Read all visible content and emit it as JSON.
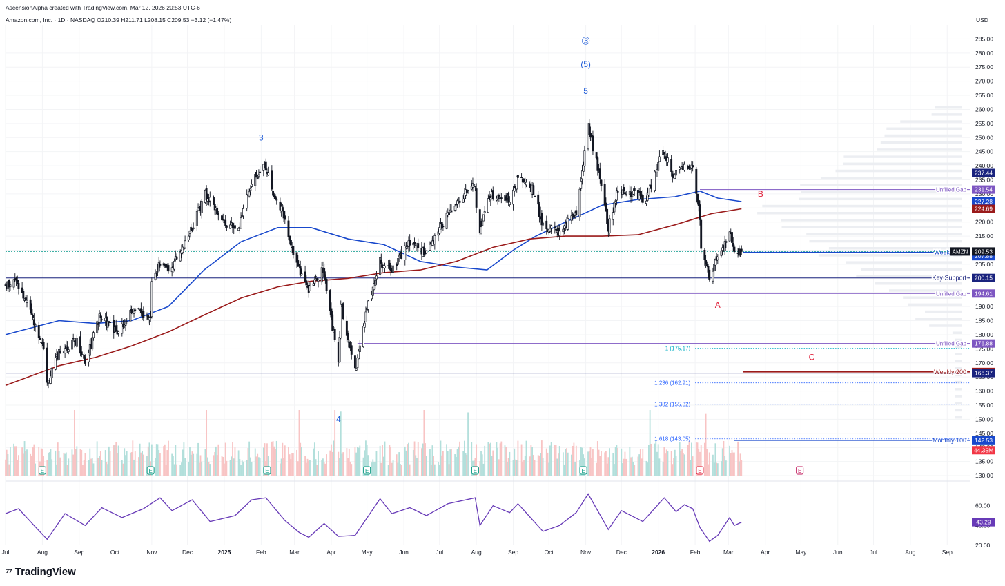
{
  "header": {
    "author_line": "AscensionAlpha created with TradingView.com, Mar 12, 2026 20:53 UTC-6",
    "symbol_line": "Amazon.com, Inc. · 1D · NASDAQ  O210.39  H211.71  L208.15  C209.53  −3.12 (−1.47%)"
  },
  "footer": {
    "brand": "TradingView"
  },
  "colors": {
    "candle": "#131722",
    "ma_blue": "#1848cc",
    "ma_red": "#9a1a1a",
    "level_navy": "#1a237e",
    "gap_purple": "#7e57c2",
    "fib_blue": "#2962ff",
    "wave_blue": "#1e5bd8",
    "wave_red": "#e0203a",
    "rsi": "#673ab7",
    "vol_up": "#b2dfdb",
    "vol_down": "#f8c4c4",
    "earnings": "#089981",
    "earnings_next": "#c2185b"
  },
  "chart_data": [
    {
      "type": "candlestick",
      "symbol": "AMZN",
      "ylabel": "USD",
      "ylim": [
        130,
        290
      ],
      "y_ticks": [
        130,
        135,
        140,
        145,
        150,
        155,
        160,
        165,
        170,
        175,
        180,
        185,
        190,
        195,
        200,
        205,
        210,
        215,
        220,
        225,
        230,
        235,
        240,
        245,
        250,
        255,
        260,
        265,
        270,
        275,
        280,
        285
      ],
      "x_range": [
        "2024-07-01",
        "2026-09-20"
      ],
      "x_ticks": [
        {
          "label": "Jul",
          "date": "2024-07-01"
        },
        {
          "label": "Aug",
          "date": "2024-08-01"
        },
        {
          "label": "Sep",
          "date": "2024-09-01"
        },
        {
          "label": "Oct",
          "date": "2024-10-01"
        },
        {
          "label": "Nov",
          "date": "2024-11-01"
        },
        {
          "label": "Dec",
          "date": "2024-12-01"
        },
        {
          "label": "2025",
          "date": "2025-01-01",
          "bold": true
        },
        {
          "label": "Feb",
          "date": "2025-02-01"
        },
        {
          "label": "Mar",
          "date": "2025-03-01"
        },
        {
          "label": "Apr",
          "date": "2025-04-01"
        },
        {
          "label": "May",
          "date": "2025-05-01"
        },
        {
          "label": "Jun",
          "date": "2025-06-01"
        },
        {
          "label": "Jul",
          "date": "2025-07-01"
        },
        {
          "label": "Aug",
          "date": "2025-08-01"
        },
        {
          "label": "Sep",
          "date": "2025-09-01"
        },
        {
          "label": "Oct",
          "date": "2025-10-01"
        },
        {
          "label": "Nov",
          "date": "2025-11-01"
        },
        {
          "label": "Dec",
          "date": "2025-12-01"
        },
        {
          "label": "2026",
          "date": "2026-01-01",
          "bold": true
        },
        {
          "label": "Feb",
          "date": "2026-02-01"
        },
        {
          "label": "Mar",
          "date": "2026-03-01"
        },
        {
          "label": "Apr",
          "date": "2026-04-01"
        },
        {
          "label": "May",
          "date": "2026-05-01"
        },
        {
          "label": "Jun",
          "date": "2026-06-01"
        },
        {
          "label": "Jul",
          "date": "2026-07-01"
        },
        {
          "label": "Aug",
          "date": "2026-08-01"
        },
        {
          "label": "Sep",
          "date": "2026-09-01"
        }
      ],
      "close_path": [
        [
          "2024-07-01",
          197
        ],
        [
          "2024-07-10",
          199
        ],
        [
          "2024-07-24",
          186
        ],
        [
          "2024-08-02",
          176
        ],
        [
          "2024-08-05",
          162
        ],
        [
          "2024-08-15",
          174
        ],
        [
          "2024-08-30",
          178
        ],
        [
          "2024-09-06",
          171
        ],
        [
          "2024-09-18",
          186
        ],
        [
          "2024-10-04",
          181
        ],
        [
          "2024-10-16",
          189
        ],
        [
          "2024-10-31",
          186
        ],
        [
          "2024-11-01",
          198
        ],
        [
          "2024-11-08",
          206
        ],
        [
          "2024-11-15",
          202
        ],
        [
          "2024-11-25",
          210
        ],
        [
          "2024-12-05",
          218
        ],
        [
          "2024-12-16",
          230
        ],
        [
          "2024-12-31",
          220
        ],
        [
          "2025-01-13",
          218
        ],
        [
          "2025-01-24",
          234
        ],
        [
          "2025-02-04",
          240
        ],
        [
          "2025-02-10",
          232
        ],
        [
          "2025-02-20",
          222
        ],
        [
          "2025-03-03",
          205
        ],
        [
          "2025-03-13",
          196
        ],
        [
          "2025-03-25",
          203
        ],
        [
          "2025-04-07",
          170
        ],
        [
          "2025-04-09",
          191
        ],
        [
          "2025-04-21",
          167
        ],
        [
          "2025-05-01",
          189
        ],
        [
          "2025-05-12",
          206
        ],
        [
          "2025-05-22",
          203
        ],
        [
          "2025-06-06",
          213
        ],
        [
          "2025-06-20",
          209
        ],
        [
          "2025-07-07",
          222
        ],
        [
          "2025-07-31",
          234
        ],
        [
          "2025-08-02",
          214
        ],
        [
          "2025-08-13",
          230
        ],
        [
          "2025-08-29",
          228
        ],
        [
          "2025-09-05",
          236
        ],
        [
          "2025-09-17",
          232
        ],
        [
          "2025-09-26",
          219
        ],
        [
          "2025-10-10",
          216
        ],
        [
          "2025-10-24",
          224
        ],
        [
          "2025-10-31",
          244
        ],
        [
          "2025-11-03",
          254
        ],
        [
          "2025-11-14",
          234
        ],
        [
          "2025-11-20",
          218
        ],
        [
          "2025-11-28",
          232
        ],
        [
          "2025-12-10",
          230
        ],
        [
          "2025-12-22",
          228
        ],
        [
          "2026-01-05",
          246
        ],
        [
          "2026-01-14",
          236
        ],
        [
          "2026-01-23",
          240
        ],
        [
          "2026-01-30",
          239
        ],
        [
          "2026-02-05",
          222
        ],
        [
          "2026-02-06",
          210
        ],
        [
          "2026-02-13",
          200
        ],
        [
          "2026-02-20",
          208
        ],
        [
          "2026-03-02",
          216
        ],
        [
          "2026-03-06",
          211
        ],
        [
          "2026-03-12",
          209.53
        ]
      ],
      "moving_averages": [
        {
          "name": "Weekly 100",
          "color": "#1848cc",
          "points": [
            [
              "2024-07-01",
              180
            ],
            [
              "2024-08-15",
              185
            ],
            [
              "2024-09-15",
              184
            ],
            [
              "2024-10-15",
              185
            ],
            [
              "2024-11-15",
              190
            ],
            [
              "2024-12-15",
              203
            ],
            [
              "2025-01-15",
              213
            ],
            [
              "2025-02-15",
              218
            ],
            [
              "2025-03-15",
              218
            ],
            [
              "2025-04-15",
              214
            ],
            [
              "2025-05-15",
              212
            ],
            [
              "2025-06-15",
              206
            ],
            [
              "2025-07-15",
              204
            ],
            [
              "2025-08-10",
              203
            ],
            [
              "2025-09-01",
              210
            ],
            [
              "2025-09-20",
              215
            ],
            [
              "2025-10-15",
              220
            ],
            [
              "2025-11-15",
              226
            ],
            [
              "2025-12-15",
              228
            ],
            [
              "2026-01-15",
              229
            ],
            [
              "2026-02-05",
              231
            ],
            [
              "2026-02-20",
              228.5
            ],
            [
              "2026-03-12",
              227.28
            ]
          ]
        },
        {
          "name": "Weekly 200",
          "color": "#9a1a1a",
          "points": [
            [
              "2024-07-01",
              162
            ],
            [
              "2024-08-15",
              169
            ],
            [
              "2024-09-15",
              172
            ],
            [
              "2024-10-15",
              176
            ],
            [
              "2024-11-15",
              181
            ],
            [
              "2024-12-15",
              187
            ],
            [
              "2025-01-15",
              193
            ],
            [
              "2025-02-15",
              197
            ],
            [
              "2025-03-15",
              199
            ],
            [
              "2025-04-15",
              200
            ],
            [
              "2025-05-15",
              202
            ],
            [
              "2025-06-15",
              203
            ],
            [
              "2025-07-15",
              206
            ],
            [
              "2025-08-15",
              211
            ],
            [
              "2025-09-15",
              214
            ],
            [
              "2025-10-15",
              215
            ],
            [
              "2025-11-15",
              215
            ],
            [
              "2025-12-15",
              215.5
            ],
            [
              "2026-01-15",
              219
            ],
            [
              "2026-02-15",
              223
            ],
            [
              "2026-03-12",
              224.69
            ]
          ]
        }
      ],
      "horizontal_levels": [
        {
          "label": "",
          "price": 237.44,
          "start": "2024-07-01",
          "color": "#1a237e",
          "badge": "237.44"
        },
        {
          "label": "Unfilled Gap",
          "price": 231.54,
          "start": "2026-02-05",
          "color": "#7e57c2",
          "badge": "231.54"
        },
        {
          "label": "",
          "price": 227.28,
          "start": "",
          "color": "#1848cc",
          "badge": "227.28"
        },
        {
          "label": "",
          "price": 224.69,
          "start": "",
          "color": "#9a1a1a",
          "badge": "224.69"
        },
        {
          "label": "Weekly 100",
          "price": 209.23,
          "start": "2026-03-13",
          "color": "#1848cc",
          "badge": "209.23"
        },
        {
          "label": "",
          "price": 207.88,
          "start": "",
          "color": "#1848cc",
          "badge": "207.88"
        },
        {
          "label": "Key Support",
          "price": 200.15,
          "start": "2024-07-01",
          "color": "#1a237e",
          "badge": "200.15"
        },
        {
          "label": "Unfilled Gap",
          "price": 194.61,
          "start": "2025-05-05",
          "color": "#7e57c2",
          "badge": "194.61"
        },
        {
          "label": "Unfilled Gap",
          "price": 176.88,
          "start": "2025-04-23",
          "color": "#7e57c2",
          "badge": "176.88"
        },
        {
          "label": "Weekly 200",
          "price": 166.79,
          "start": "2026-03-13",
          "color": "#9a1a1a",
          "badge": "166.79"
        },
        {
          "label": "",
          "price": 166.37,
          "start": "2024-07-01",
          "color": "#1a237e",
          "badge": "166.37"
        },
        {
          "label": "Monthly 100",
          "price": 142.53,
          "start": "2026-03-06",
          "color": "#1848cc",
          "badge": "142.53"
        }
      ],
      "current_price": {
        "label": "AMZN",
        "price": 209.53
      },
      "fib_levels": [
        {
          "label": "1 (175.17)",
          "price": 175.17,
          "color": "#00acc1"
        },
        {
          "label": "1.236 (162.91)",
          "price": 162.91,
          "color": "#2962ff"
        },
        {
          "label": "1.382 (155.32)",
          "price": 155.32,
          "color": "#2962ff"
        },
        {
          "label": "1.618 (143.05)",
          "price": 143.05,
          "color": "#2962ff"
        }
      ],
      "wave_labels": [
        {
          "text": "3",
          "date": "2025-02-01",
          "price": 249,
          "color": "#1e5bd8"
        },
        {
          "text": "③",
          "date": "2025-11-01",
          "price": 283,
          "color": "#1e5bd8"
        },
        {
          "text": "(5)",
          "date": "2025-11-01",
          "price": 275,
          "color": "#1e5bd8"
        },
        {
          "text": "5",
          "date": "2025-11-01",
          "price": 265.5,
          "color": "#1e5bd8"
        },
        {
          "text": "4",
          "date": "2025-04-07",
          "price": 149,
          "color": "#1e5bd8"
        },
        {
          "text": "B",
          "date": "2026-03-28",
          "price": 229,
          "color": "#e0203a"
        },
        {
          "text": "A",
          "date": "2026-02-20",
          "price": 189.5,
          "color": "#e0203a"
        },
        {
          "text": "C",
          "date": "2026-05-10",
          "price": 171,
          "color": "#e0203a"
        }
      ],
      "volume": {
        "label": "44.35M"
      },
      "earnings_dates": [
        "2024-08-01",
        "2024-10-31",
        "2025-02-06",
        "2025-05-01",
        "2025-07-31",
        "2025-10-30",
        "2026-02-05",
        "2026-04-30"
      ]
    },
    {
      "type": "line",
      "name": "RSI",
      "ylim": [
        20,
        80
      ],
      "y_ticks": [
        20,
        40,
        60
      ],
      "last_value": 43.29,
      "points": [
        [
          "2024-07-01",
          52
        ],
        [
          "2024-07-12",
          57
        ],
        [
          "2024-07-25",
          40
        ],
        [
          "2024-08-05",
          26
        ],
        [
          "2024-08-20",
          52
        ],
        [
          "2024-09-06",
          40
        ],
        [
          "2024-09-20",
          58
        ],
        [
          "2024-10-07",
          48
        ],
        [
          "2024-10-25",
          57
        ],
        [
          "2024-11-08",
          68
        ],
        [
          "2024-11-18",
          55
        ],
        [
          "2024-12-05",
          66
        ],
        [
          "2024-12-20",
          44
        ],
        [
          "2025-01-10",
          50
        ],
        [
          "2025-01-24",
          66
        ],
        [
          "2025-02-05",
          68
        ],
        [
          "2025-02-21",
          45
        ],
        [
          "2025-03-05",
          33
        ],
        [
          "2025-03-13",
          28
        ],
        [
          "2025-03-26",
          42
        ],
        [
          "2025-04-07",
          29
        ],
        [
          "2025-04-21",
          30
        ],
        [
          "2025-05-12",
          67
        ],
        [
          "2025-05-22",
          52
        ],
        [
          "2025-06-06",
          58
        ],
        [
          "2025-06-20",
          50
        ],
        [
          "2025-07-08",
          62
        ],
        [
          "2025-07-31",
          68
        ],
        [
          "2025-08-04",
          40
        ],
        [
          "2025-08-15",
          60
        ],
        [
          "2025-08-29",
          53
        ],
        [
          "2025-09-05",
          62
        ],
        [
          "2025-09-26",
          34
        ],
        [
          "2025-10-10",
          40
        ],
        [
          "2025-10-24",
          53
        ],
        [
          "2025-11-03",
          72
        ],
        [
          "2025-11-20",
          36
        ],
        [
          "2025-12-01",
          55
        ],
        [
          "2025-12-19",
          44
        ],
        [
          "2026-01-06",
          68
        ],
        [
          "2026-01-16",
          54
        ],
        [
          "2026-01-23",
          61
        ],
        [
          "2026-01-30",
          57
        ],
        [
          "2026-02-05",
          38
        ],
        [
          "2026-02-13",
          24
        ],
        [
          "2026-02-20",
          30
        ],
        [
          "2026-03-02",
          48
        ],
        [
          "2026-03-06",
          40
        ],
        [
          "2026-03-12",
          43.29
        ]
      ]
    }
  ]
}
